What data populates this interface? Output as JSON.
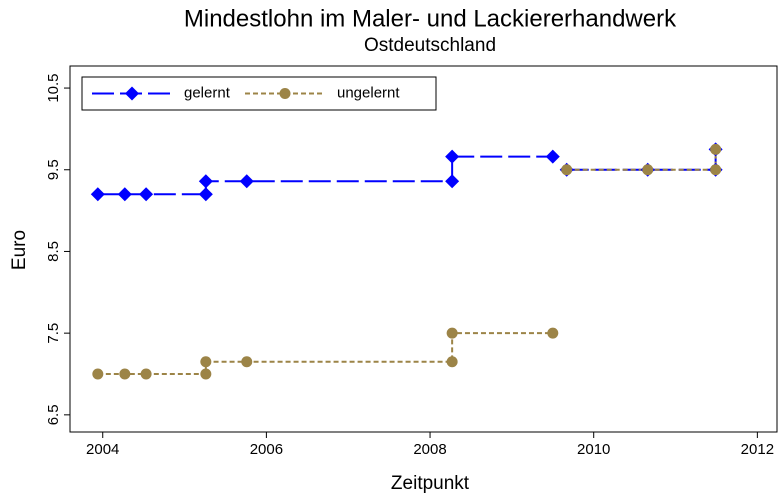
{
  "chart_data": {
    "type": "line",
    "title": "Mindestlohn im Maler- und Lackiererhandwerk",
    "subtitle": "Ostdeutschland",
    "xlabel": "Zeitpunkt",
    "ylabel": "Euro",
    "x": [
      2003.94,
      2004.27,
      2004.53,
      2005.26,
      2005.26,
      2005.76,
      2008.27,
      2008.27,
      2009.5,
      null,
      2009.67,
      2010.66,
      2011.49,
      2011.49
    ],
    "series": [
      {
        "name": "gelernt",
        "color": "#0000ff",
        "values": [
          9.2,
          9.2,
          9.2,
          9.2,
          9.36,
          9.36,
          9.36,
          9.66,
          9.66,
          null,
          9.5,
          9.5,
          9.5,
          9.75
        ]
      },
      {
        "name": "ungelernt",
        "color": "#9c8447",
        "values": [
          7,
          7,
          7,
          7,
          7.15,
          7.15,
          7.15,
          7.5,
          7.5,
          null,
          9.5,
          9.5,
          9.5,
          9.75
        ]
      }
    ],
    "xlim": [
      2003.6,
      2012.24
    ],
    "ylim": [
      6.29,
      10.77
    ],
    "xticks": [
      2004,
      2006,
      2008,
      2010,
      2012
    ],
    "yticks": [
      6.5,
      7.5,
      8.5,
      9.5,
      10.5
    ],
    "grid": false,
    "legend": "top-left"
  }
}
